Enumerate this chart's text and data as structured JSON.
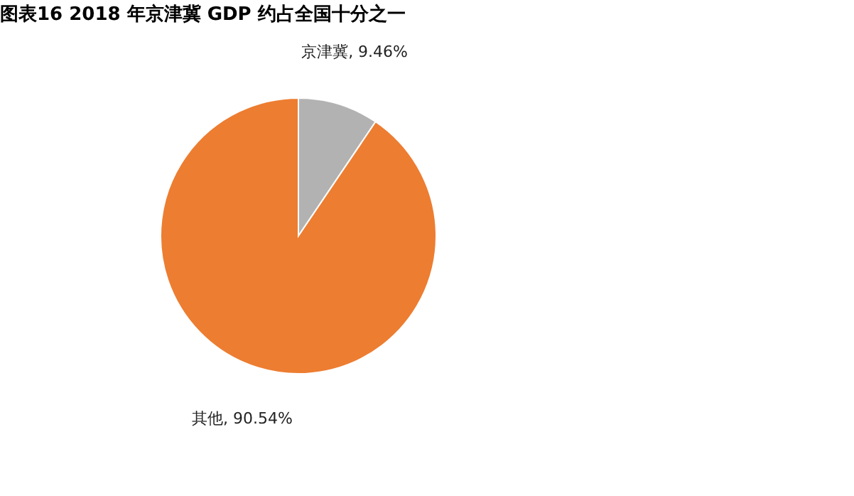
{
  "chart_data": {
    "type": "pie",
    "title": "图表16    2018 年京津冀 GDP 约占全国十分之一",
    "categories": [
      "京津冀",
      "其他"
    ],
    "values": [
      9.46,
      90.54
    ],
    "colors": [
      "#b2b2b2",
      "#ed7d31"
    ],
    "value_labels": [
      "9.46%",
      "90.54%"
    ],
    "legend": false
  }
}
